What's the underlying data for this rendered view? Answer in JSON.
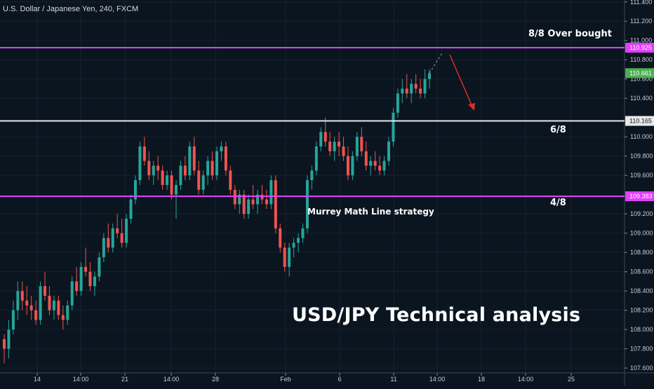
{
  "symbol_title": "U.S. Dollar / Japanese Yen, 240, FXCM",
  "annotations": {
    "overbought": "8/8  Over bought",
    "six_eighth": "6/8",
    "four_eighth": "4/8",
    "strategy": "Murrey Math Line strategy",
    "headline": "USD/JPY Technical analysis"
  },
  "colors": {
    "background": "#0b1520",
    "bull": "#26a69a",
    "bear": "#ef5350",
    "magenta_line": "#e040fb",
    "white_line": "#e8e8e8",
    "arrow": "#d32f2f",
    "price_label": "#4caf50"
  },
  "chart_data": {
    "type": "candlestick",
    "title": "U.S. Dollar / Japanese Yen, 240, FXCM",
    "x_tick_labels": [
      "14",
      "14:00",
      "21",
      "14:00",
      "28",
      "Feb",
      "6",
      "11",
      "14:00",
      "18",
      "14:00",
      "25"
    ],
    "y_tick_labels": [
      "107.600",
      "107.800",
      "108.000",
      "108.200",
      "108.400",
      "108.600",
      "108.800",
      "109.000",
      "109.200",
      "109.600",
      "109.800",
      "110.000",
      "110.400",
      "110.600",
      "110.800",
      "111.000",
      "111.200",
      "111.400"
    ],
    "ylim": [
      107.55,
      111.42
    ],
    "horizontal_levels": [
      {
        "value": 110.925,
        "label": "110.925",
        "color": "#e040fb",
        "name": "8/8  Over bought"
      },
      {
        "value": 110.165,
        "label": "110.165",
        "color": "#e8e8e8",
        "name": "6/8"
      },
      {
        "value": 109.383,
        "label": "109.383",
        "color": "#e040fb",
        "name": "4/8"
      }
    ],
    "last_price": {
      "value": 110.661,
      "label": "110.661"
    },
    "candles": [
      [
        107.9,
        107.95,
        107.65,
        107.8
      ],
      [
        107.8,
        108.1,
        107.7,
        108.0
      ],
      [
        108.0,
        108.3,
        107.95,
        108.2
      ],
      [
        108.2,
        108.5,
        108.1,
        108.4
      ],
      [
        108.4,
        108.5,
        108.2,
        108.3
      ],
      [
        108.3,
        108.45,
        108.15,
        108.25
      ],
      [
        108.25,
        108.35,
        108.1,
        108.2
      ],
      [
        108.2,
        108.3,
        108.05,
        108.1
      ],
      [
        108.1,
        108.5,
        108.05,
        108.45
      ],
      [
        108.45,
        108.6,
        108.3,
        108.35
      ],
      [
        108.35,
        108.45,
        108.15,
        108.2
      ],
      [
        108.2,
        108.35,
        108.1,
        108.3
      ],
      [
        108.3,
        108.35,
        108.1,
        108.15
      ],
      [
        108.15,
        108.25,
        108.0,
        108.1
      ],
      [
        108.1,
        108.3,
        108.05,
        108.25
      ],
      [
        108.25,
        108.55,
        108.2,
        108.5
      ],
      [
        108.5,
        108.65,
        108.35,
        108.4
      ],
      [
        108.4,
        108.7,
        108.35,
        108.65
      ],
      [
        108.65,
        108.85,
        108.55,
        108.6
      ],
      [
        108.6,
        108.7,
        108.4,
        108.45
      ],
      [
        108.45,
        108.6,
        108.35,
        108.55
      ],
      [
        108.55,
        108.8,
        108.5,
        108.75
      ],
      [
        108.75,
        109.0,
        108.7,
        108.95
      ],
      [
        108.95,
        109.1,
        108.8,
        108.85
      ],
      [
        108.85,
        109.1,
        108.8,
        109.05
      ],
      [
        109.05,
        109.2,
        108.95,
        109.0
      ],
      [
        109.0,
        109.15,
        108.85,
        108.9
      ],
      [
        108.9,
        109.2,
        108.85,
        109.15
      ],
      [
        109.15,
        109.4,
        109.1,
        109.35
      ],
      [
        109.35,
        109.6,
        109.3,
        109.55
      ],
      [
        109.55,
        109.95,
        109.5,
        109.9
      ],
      [
        109.9,
        110.0,
        109.7,
        109.75
      ],
      [
        109.75,
        109.85,
        109.55,
        109.6
      ],
      [
        109.6,
        109.75,
        109.5,
        109.7
      ],
      [
        109.7,
        109.8,
        109.55,
        109.65
      ],
      [
        109.65,
        109.7,
        109.45,
        109.5
      ],
      [
        109.5,
        109.65,
        109.45,
        109.6
      ],
      [
        109.6,
        109.65,
        109.35,
        109.4
      ],
      [
        109.4,
        109.55,
        109.15,
        109.5
      ],
      [
        109.5,
        109.75,
        109.45,
        109.7
      ],
      [
        109.7,
        109.8,
        109.55,
        109.6
      ],
      [
        109.6,
        109.95,
        109.55,
        109.9
      ],
      [
        109.9,
        110.0,
        109.6,
        109.65
      ],
      [
        109.65,
        109.75,
        109.4,
        109.45
      ],
      [
        109.45,
        109.65,
        109.4,
        109.6
      ],
      [
        109.6,
        109.8,
        109.5,
        109.75
      ],
      [
        109.75,
        109.85,
        109.55,
        109.6
      ],
      [
        109.6,
        109.9,
        109.55,
        109.85
      ],
      [
        109.85,
        109.95,
        109.75,
        109.9
      ],
      [
        109.9,
        109.95,
        109.6,
        109.65
      ],
      [
        109.65,
        109.7,
        109.4,
        109.45
      ],
      [
        109.45,
        109.5,
        109.25,
        109.3
      ],
      [
        109.3,
        109.45,
        109.2,
        109.4
      ],
      [
        109.4,
        109.45,
        109.15,
        109.2
      ],
      [
        109.2,
        109.4,
        109.15,
        109.35
      ],
      [
        109.35,
        109.5,
        109.25,
        109.3
      ],
      [
        109.3,
        109.45,
        109.2,
        109.4
      ],
      [
        109.4,
        109.5,
        109.3,
        109.35
      ],
      [
        109.35,
        109.45,
        109.25,
        109.3
      ],
      [
        109.3,
        109.6,
        109.25,
        109.55
      ],
      [
        109.55,
        109.6,
        109.0,
        109.05
      ],
      [
        109.05,
        109.1,
        108.8,
        108.85
      ],
      [
        108.85,
        108.9,
        108.6,
        108.65
      ],
      [
        108.65,
        108.9,
        108.55,
        108.85
      ],
      [
        108.85,
        108.95,
        108.75,
        108.9
      ],
      [
        108.9,
        109.0,
        108.8,
        108.95
      ],
      [
        108.95,
        109.1,
        108.9,
        109.05
      ],
      [
        109.05,
        109.6,
        109.0,
        109.55
      ],
      [
        109.55,
        109.7,
        109.45,
        109.65
      ],
      [
        109.65,
        109.95,
        109.6,
        109.9
      ],
      [
        109.9,
        110.1,
        109.85,
        110.05
      ],
      [
        110.05,
        110.2,
        109.9,
        109.95
      ],
      [
        109.95,
        110.05,
        109.8,
        109.85
      ],
      [
        109.85,
        110.0,
        109.75,
        109.95
      ],
      [
        109.95,
        110.05,
        109.8,
        109.9
      ],
      [
        109.9,
        110.0,
        109.75,
        109.8
      ],
      [
        109.8,
        109.9,
        109.55,
        109.6
      ],
      [
        109.6,
        109.85,
        109.55,
        109.8
      ],
      [
        109.8,
        110.05,
        109.75,
        110.0
      ],
      [
        110.0,
        110.1,
        109.8,
        109.85
      ],
      [
        109.85,
        109.95,
        109.65,
        109.7
      ],
      [
        109.7,
        109.8,
        109.6,
        109.75
      ],
      [
        109.75,
        109.85,
        109.65,
        109.7
      ],
      [
        109.7,
        109.8,
        109.6,
        109.65
      ],
      [
        109.65,
        109.8,
        109.6,
        109.75
      ],
      [
        109.75,
        110.0,
        109.7,
        109.95
      ],
      [
        109.95,
        110.3,
        109.9,
        110.25
      ],
      [
        110.25,
        110.5,
        110.2,
        110.45
      ],
      [
        110.45,
        110.6,
        110.35,
        110.5
      ],
      [
        110.5,
        110.65,
        110.4,
        110.45
      ],
      [
        110.45,
        110.6,
        110.35,
        110.55
      ],
      [
        110.55,
        110.65,
        110.45,
        110.5
      ],
      [
        110.5,
        110.6,
        110.4,
        110.45
      ],
      [
        110.45,
        110.7,
        110.4,
        110.6
      ],
      [
        110.6,
        110.7,
        110.5,
        110.66
      ]
    ]
  }
}
